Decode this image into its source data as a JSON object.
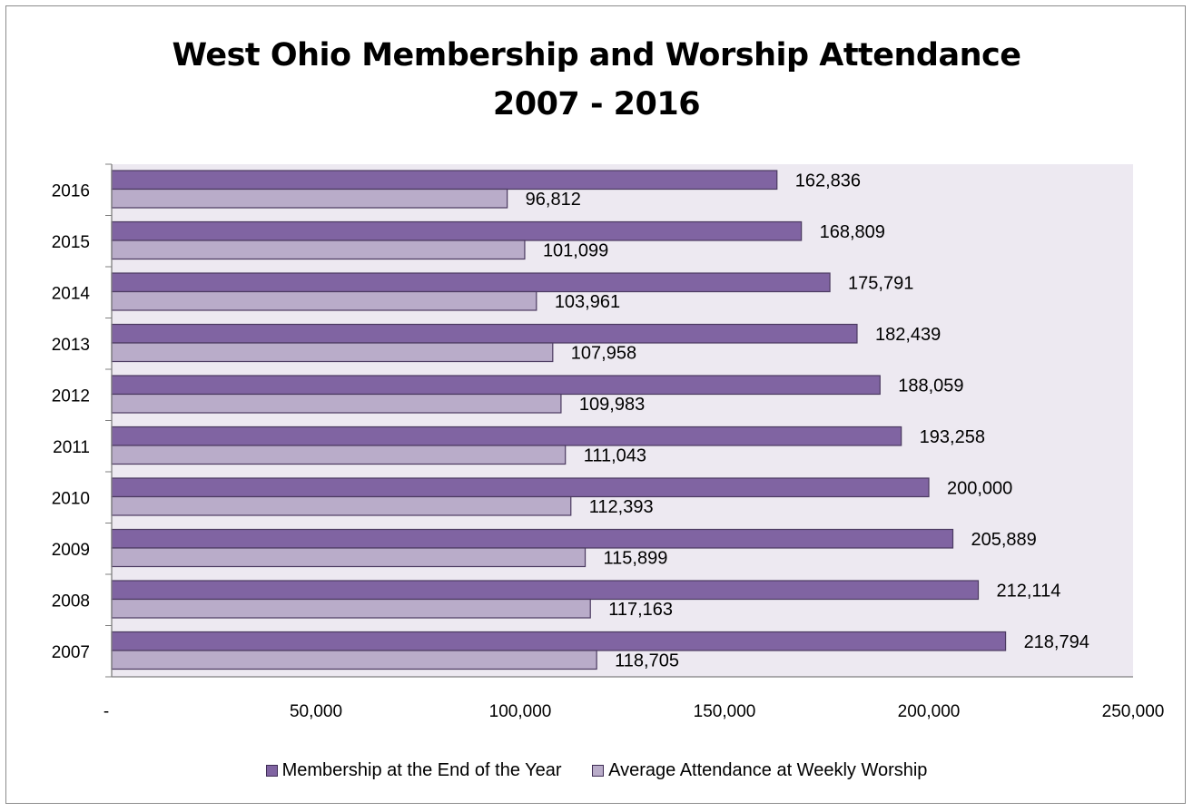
{
  "chart_data": {
    "type": "bar",
    "orientation": "horizontal",
    "title": "West Ohio Membership and Worship Attendance\n2007 - 2016",
    "categories": [
      "2016",
      "2015",
      "2014",
      "2013",
      "2012",
      "2011",
      "2010",
      "2009",
      "2008",
      "2007"
    ],
    "series": [
      {
        "name": "Membership at the End of the Year",
        "color": "#8064a2",
        "values": [
          162836,
          168809,
          175791,
          182439,
          188059,
          193258,
          200000,
          205889,
          212114,
          218794
        ],
        "labels": [
          "162,836",
          "168,809",
          "175,791",
          "182,439",
          "188,059",
          "193,258",
          "200,000",
          "205,889",
          "212,114",
          "218,794"
        ]
      },
      {
        "name": "Average Attendance at Weekly Worship",
        "color": "#b9acc9",
        "values": [
          96812,
          101099,
          103961,
          107958,
          109983,
          111043,
          112393,
          115899,
          117163,
          118705
        ],
        "labels": [
          "96,812",
          "101,099",
          "103,961",
          "107,958",
          "109,983",
          "111,043",
          "112,393",
          "115,899",
          "117,163",
          "118,705"
        ]
      }
    ],
    "xlim": [
      0,
      250000
    ],
    "x_ticks": [
      0,
      50000,
      100000,
      150000,
      200000,
      250000
    ],
    "x_tick_labels": [
      "-",
      "50,000",
      "100,000",
      "150,000",
      "200,000",
      "250,000"
    ],
    "plot_background": "#ede9f1",
    "grid": false,
    "legend_position": "bottom"
  }
}
